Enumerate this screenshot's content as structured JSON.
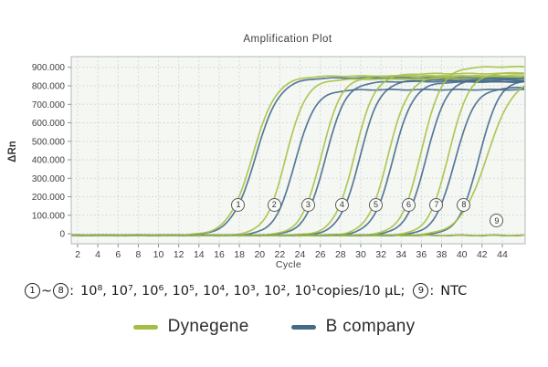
{
  "title": "Amplification Plot",
  "chart_data": {
    "type": "line",
    "title": "Amplification Plot",
    "xlabel": "Cycle",
    "ylabel": "ΔRn",
    "grid": true,
    "xlim": [
      1.37,
      46.26
    ],
    "ylim": [
      -54000,
      958000
    ],
    "x_ticks": [
      2,
      4,
      6,
      8,
      10,
      12,
      14,
      16,
      18,
      20,
      22,
      24,
      26,
      28,
      30,
      32,
      34,
      36,
      38,
      40,
      42,
      44
    ],
    "y_ticks": [
      {
        "value": 900000,
        "label": "900.000"
      },
      {
        "value": 800000,
        "label": "800.000"
      },
      {
        "value": 700000,
        "label": "700.000"
      },
      {
        "value": 600000,
        "label": "600.000"
      },
      {
        "value": 500000,
        "label": "500.000"
      },
      {
        "value": 400000,
        "label": "400.000"
      },
      {
        "value": 300000,
        "label": "300.000"
      },
      {
        "value": 200000,
        "label": "200.000"
      },
      {
        "value": 100000,
        "label": "100.000"
      },
      {
        "value": 0,
        "label": "0"
      }
    ],
    "series": [
      {
        "name": "Dynegene",
        "color": "#a6c043"
      },
      {
        "name": "B company",
        "color": "#42688a"
      }
    ],
    "baseline": -9000,
    "groups": [
      {
        "id": "1",
        "circled": "①",
        "copies": "10⁸ copies/10 μL",
        "dynegene": {
          "ct": 19.3,
          "plateau": 862000,
          "k": 0.85
        },
        "b_company": {
          "ct": 19.6,
          "plateau": 852000,
          "k": 0.85
        }
      },
      {
        "id": "2",
        "circled": "②",
        "copies": "10⁷ copies/10 μL",
        "dynegene": {
          "ct": 22.6,
          "plateau": 845000,
          "k": 1.0
        },
        "b_company": {
          "ct": 23.5,
          "plateau": 788000,
          "k": 1.0
        }
      },
      {
        "id": "3",
        "circled": "③",
        "copies": "10⁶ copies/10 μL",
        "dynegene": {
          "ct": 26.1,
          "plateau": 862000,
          "k": 1.0
        },
        "b_company": {
          "ct": 26.5,
          "plateau": 832000,
          "k": 1.0
        }
      },
      {
        "id": "4",
        "circled": "④",
        "copies": "10⁵ copies/10 μL",
        "dynegene": {
          "ct": 29.4,
          "plateau": 875000,
          "k": 1.0
        },
        "b_company": {
          "ct": 29.9,
          "plateau": 840000,
          "k": 1.0
        }
      },
      {
        "id": "5",
        "circled": "⑤",
        "copies": "10⁴ copies/10 μL",
        "dynegene": {
          "ct": 32.7,
          "plateau": 860000,
          "k": 1.0
        },
        "b_company": {
          "ct": 33.2,
          "plateau": 830000,
          "k": 1.0
        }
      },
      {
        "id": "6",
        "circled": "⑥",
        "copies": "10³ copies/10 μL",
        "dynegene": {
          "ct": 36.0,
          "plateau": 912000,
          "k": 1.0
        },
        "b_company": {
          "ct": 36.5,
          "plateau": 848000,
          "k": 1.0
        }
      },
      {
        "id": "7",
        "circled": "⑦",
        "copies": "10² copies/10 μL",
        "dynegene": {
          "ct": 38.7,
          "plateau": 880000,
          "k": 1.0
        },
        "b_company": {
          "ct": 39.3,
          "plateau": 800000,
          "k": 1.0
        }
      },
      {
        "id": "8",
        "circled": "⑧",
        "copies": "10¹ copies/10 μL",
        "dynegene": {
          "ct": 42.5,
          "plateau": 860000,
          "k": 0.75
        },
        "b_company": {
          "ct": 41.7,
          "plateau": 845000,
          "k": 1.0
        }
      },
      {
        "id": "9",
        "circled": "⑨",
        "copies": "NTC",
        "dynegene": {
          "ct": null,
          "plateau": 0,
          "k": 1.0
        },
        "b_company": {
          "ct": null,
          "plateau": 0,
          "k": 1.0
        }
      }
    ],
    "annotations": [
      {
        "n": "1",
        "cycle": 17.85,
        "value": 160000
      },
      {
        "n": "2",
        "cycle": 21.4,
        "value": 160000
      },
      {
        "n": "3",
        "cycle": 24.75,
        "value": 160000
      },
      {
        "n": "4",
        "cycle": 28.1,
        "value": 160000
      },
      {
        "n": "5",
        "cycle": 31.45,
        "value": 160000
      },
      {
        "n": "6",
        "cycle": 34.7,
        "value": 160000
      },
      {
        "n": "7",
        "cycle": 37.45,
        "value": 160000
      },
      {
        "n": "8",
        "cycle": 40.15,
        "value": 160000
      },
      {
        "n": "9",
        "cycle": 43.4,
        "value": 74000
      }
    ]
  },
  "caption": {
    "group_range_start": "1",
    "group_range_separator": "~",
    "group_range_end": "8",
    "colon": ":",
    "concentrations": "10⁸, 10⁷, 10⁶, 10⁵, 10⁴, 10³, 10², 10¹copies/10 μL;",
    "ntc_group": "9",
    "ntc_colon": ":",
    "ntc_value": "NTC"
  },
  "legend": {
    "items": [
      {
        "label": "Dynegene",
        "color": "#a5bf44"
      },
      {
        "label": "B company",
        "color": "#456a85"
      }
    ]
  }
}
